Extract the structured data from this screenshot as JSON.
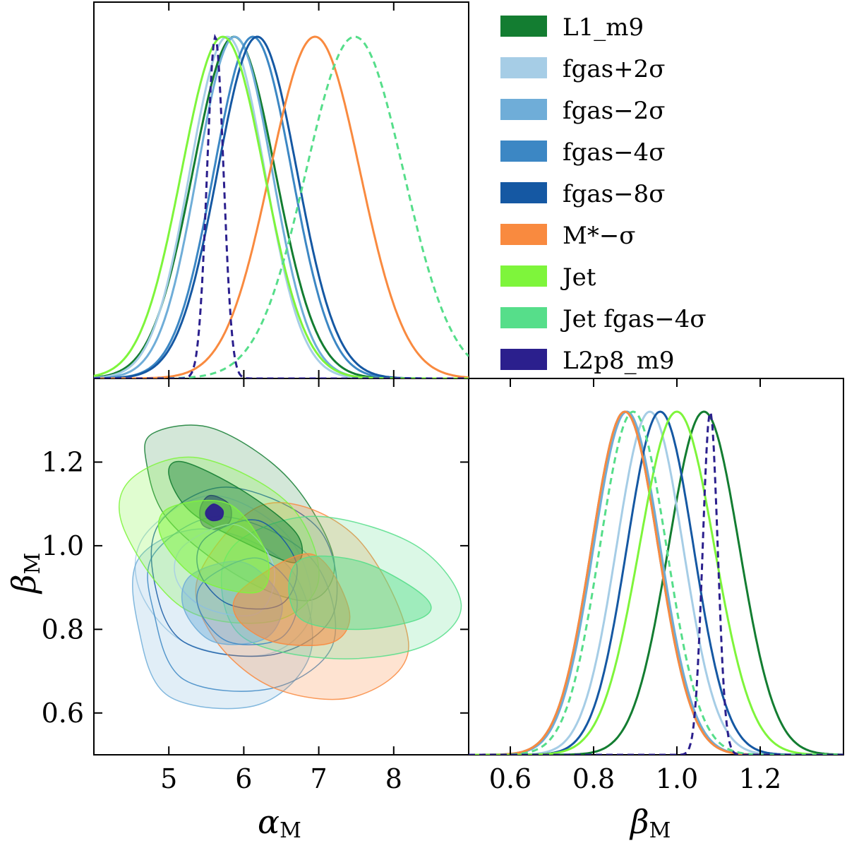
{
  "chart_data": {
    "type": "corner",
    "parameters": [
      {
        "key": "alpha",
        "label": "α",
        "sub": "M",
        "range": [
          4.0,
          9.0
        ],
        "ticks": [
          5,
          6,
          7,
          8
        ]
      },
      {
        "key": "beta",
        "label": "β",
        "sub": "M",
        "range": [
          0.5,
          1.4
        ],
        "ticks": [
          0.6,
          0.8,
          1.0,
          1.2
        ]
      }
    ],
    "tick_labels": {
      "alpha": [
        "5",
        "6",
        "7",
        "8"
      ],
      "beta_y": [
        "0.6",
        "0.8",
        "1.0",
        "1.2"
      ],
      "beta_x": [
        "0.6",
        "0.8",
        "1.0",
        "1.2"
      ]
    },
    "series": [
      {
        "name": "L1_m9",
        "legend": "L1_m9",
        "color": "#137d31",
        "dashed": false,
        "alpha_mean": 5.87,
        "alpha_sigma": 0.55,
        "beta_mean": 1.065,
        "beta_sigma": 0.085,
        "contour": {
          "c68": [
            [
              5.2,
              1.2
            ],
            [
              6.0,
              1.13
            ],
            [
              6.7,
              1.03
            ],
            [
              6.7,
              0.96
            ],
            [
              6.1,
              1.0
            ],
            [
              5.3,
              1.08
            ],
            [
              5.0,
              1.17
            ]
          ],
          "c95": [
            [
              4.8,
              1.27
            ],
            [
              5.6,
              1.28
            ],
            [
              6.6,
              1.16
            ],
            [
              7.2,
              0.97
            ],
            [
              6.9,
              0.87
            ],
            [
              6.0,
              0.92
            ],
            [
              5.0,
              1.06
            ],
            [
              4.7,
              1.2
            ]
          ]
        },
        "fill_opacity": 0.32
      },
      {
        "name": "fgas+2σ",
        "legend": "fgas+2σ",
        "color": "#a6cde6",
        "dashed": false,
        "alpha_mean": 5.78,
        "alpha_sigma": 0.5,
        "beta_mean": 0.935,
        "beta_sigma": 0.08,
        "contour": {
          "c68": [
            [
              5.2,
              1.0
            ],
            [
              5.9,
              1.05
            ],
            [
              6.4,
              0.95
            ],
            [
              6.2,
              0.84
            ],
            [
              5.5,
              0.85
            ],
            [
              5.1,
              0.92
            ]
          ],
          "c95": [
            [
              4.7,
              1.03
            ],
            [
              5.6,
              1.12
            ],
            [
              6.6,
              1.02
            ],
            [
              6.9,
              0.84
            ],
            [
              6.3,
              0.74
            ],
            [
              5.2,
              0.77
            ],
            [
              4.6,
              0.9
            ]
          ]
        },
        "fill_opacity": 0.0
      },
      {
        "name": "fgas−2σ",
        "legend": "fgas−2σ",
        "color": "#6fadd8",
        "dashed": false,
        "alpha_mean": 5.88,
        "alpha_sigma": 0.5,
        "beta_mean": 0.88,
        "beta_sigma": 0.08,
        "contour": {
          "c68": [
            [
              5.3,
              0.93
            ],
            [
              6.0,
              0.96
            ],
            [
              6.5,
              0.87
            ],
            [
              6.3,
              0.78
            ],
            [
              5.6,
              0.77
            ],
            [
              5.2,
              0.85
            ]
          ],
          "c95": [
            [
              4.6,
              0.97
            ],
            [
              5.5,
              1.04
            ],
            [
              6.6,
              0.95
            ],
            [
              6.9,
              0.75
            ],
            [
              6.2,
              0.62
            ],
            [
              5.0,
              0.64
            ],
            [
              4.6,
              0.8
            ]
          ]
        },
        "fill_opacity": 0.35
      },
      {
        "name": "fgas−4σ",
        "legend": "fgas−4σ",
        "color": "#3c87c4",
        "dashed": false,
        "alpha_mean": 6.12,
        "alpha_sigma": 0.52,
        "beta_mean": 0.875,
        "beta_sigma": 0.08,
        "contour": {
          "c68": [
            [
              5.5,
              0.92
            ],
            [
              6.2,
              0.97
            ],
            [
              6.7,
              0.88
            ],
            [
              6.5,
              0.78
            ],
            [
              5.8,
              0.77
            ],
            [
              5.4,
              0.85
            ]
          ],
          "c95": [
            [
              4.8,
              0.98
            ],
            [
              5.7,
              1.07
            ],
            [
              6.9,
              0.97
            ],
            [
              7.2,
              0.77
            ],
            [
              6.4,
              0.66
            ],
            [
              5.2,
              0.68
            ],
            [
              4.8,
              0.84
            ]
          ]
        },
        "fill_opacity": 0.0
      },
      {
        "name": "fgas−8σ",
        "legend": "fgas−8σ",
        "color": "#1558a3",
        "dashed": false,
        "alpha_mean": 6.18,
        "alpha_sigma": 0.53,
        "beta_mean": 0.96,
        "beta_sigma": 0.08,
        "contour": {
          "c68": [
            [
              5.5,
              1.02
            ],
            [
              6.2,
              1.06
            ],
            [
              6.7,
              0.96
            ],
            [
              6.5,
              0.86
            ],
            [
              5.8,
              0.86
            ],
            [
              5.4,
              0.94
            ]
          ],
          "c95": [
            [
              4.9,
              1.06
            ],
            [
              5.8,
              1.14
            ],
            [
              7.0,
              1.04
            ],
            [
              7.2,
              0.84
            ],
            [
              6.4,
              0.74
            ],
            [
              5.2,
              0.77
            ],
            [
              4.8,
              0.92
            ]
          ]
        },
        "fill_opacity": 0.0
      },
      {
        "name": "M*−σ",
        "legend": "M*−σ",
        "color": "#f98a3f",
        "dashed": false,
        "alpha_mean": 6.95,
        "alpha_sigma": 0.6,
        "beta_mean": 0.875,
        "beta_sigma": 0.08,
        "contour": {
          "c68": [
            [
              6.0,
              0.9
            ],
            [
              6.9,
              0.98
            ],
            [
              7.4,
              0.85
            ],
            [
              7.2,
              0.77
            ],
            [
              6.4,
              0.77
            ],
            [
              5.9,
              0.83
            ]
          ],
          "c95": [
            [
              5.4,
              0.93
            ],
            [
              6.3,
              1.1
            ],
            [
              7.5,
              1.02
            ],
            [
              8.2,
              0.76
            ],
            [
              7.5,
              0.64
            ],
            [
              6.4,
              0.66
            ],
            [
              5.6,
              0.78
            ]
          ]
        },
        "fill_opacity": 0.4
      },
      {
        "name": "Jet",
        "legend": "Jet",
        "color": "#7ef53b",
        "dashed": false,
        "alpha_mean": 5.72,
        "alpha_sigma": 0.55,
        "beta_mean": 1.0,
        "beta_sigma": 0.09,
        "contour": {
          "c68": [
            [
              5.0,
              1.09
            ],
            [
              5.8,
              1.1
            ],
            [
              6.3,
              0.98
            ],
            [
              6.2,
              0.89
            ],
            [
              5.4,
              0.92
            ],
            [
              4.9,
              1.02
            ]
          ],
          "c95": [
            [
              4.5,
              1.16
            ],
            [
              5.4,
              1.21
            ],
            [
              6.6,
              1.1
            ],
            [
              7.0,
              0.92
            ],
            [
              6.4,
              0.82
            ],
            [
              5.2,
              0.85
            ],
            [
              4.4,
              1.04
            ]
          ]
        },
        "fill_opacity": 0.4
      },
      {
        "name": "Jet fgas−4σ",
        "legend": "Jet fgas−4σ",
        "color": "#56de8a",
        "dashed": true,
        "alpha_mean": 7.48,
        "alpha_sigma": 0.65,
        "beta_mean": 0.895,
        "beta_sigma": 0.08,
        "contour": {
          "c68": [
            [
              6.8,
              0.97
            ],
            [
              7.6,
              0.96
            ],
            [
              8.4,
              0.88
            ],
            [
              8.4,
              0.83
            ],
            [
              7.6,
              0.8
            ],
            [
              6.8,
              0.82
            ],
            [
              6.6,
              0.9
            ]
          ],
          "c95": [
            [
              6.0,
              1.02
            ],
            [
              7.0,
              1.07
            ],
            [
              8.3,
              1.0
            ],
            [
              8.9,
              0.86
            ],
            [
              8.4,
              0.76
            ],
            [
              7.2,
              0.73
            ],
            [
              6.0,
              0.78
            ],
            [
              5.7,
              0.92
            ]
          ]
        },
        "fill_opacity": 0.35
      },
      {
        "name": "L2p8_m9",
        "legend": "L2p8_m9",
        "color": "#2b1f8d",
        "dashed": true,
        "alpha_mean": 5.62,
        "alpha_sigma": 0.11,
        "beta_mean": 1.08,
        "beta_sigma": 0.018,
        "contour": {
          "c68": [
            [
              5.5,
              1.085
            ],
            [
              5.6,
              1.1
            ],
            [
              5.72,
              1.085
            ],
            [
              5.7,
              1.065
            ],
            [
              5.58,
              1.06
            ],
            [
              5.5,
              1.07
            ]
          ],
          "c95": [
            [
              5.42,
              1.09
            ],
            [
              5.55,
              1.12
            ],
            [
              5.8,
              1.1
            ],
            [
              5.82,
              1.06
            ],
            [
              5.65,
              1.04
            ],
            [
              5.45,
              1.05
            ]
          ]
        },
        "fill_opacity": 0.9
      }
    ],
    "grid": false,
    "legend_position": "top-right"
  }
}
